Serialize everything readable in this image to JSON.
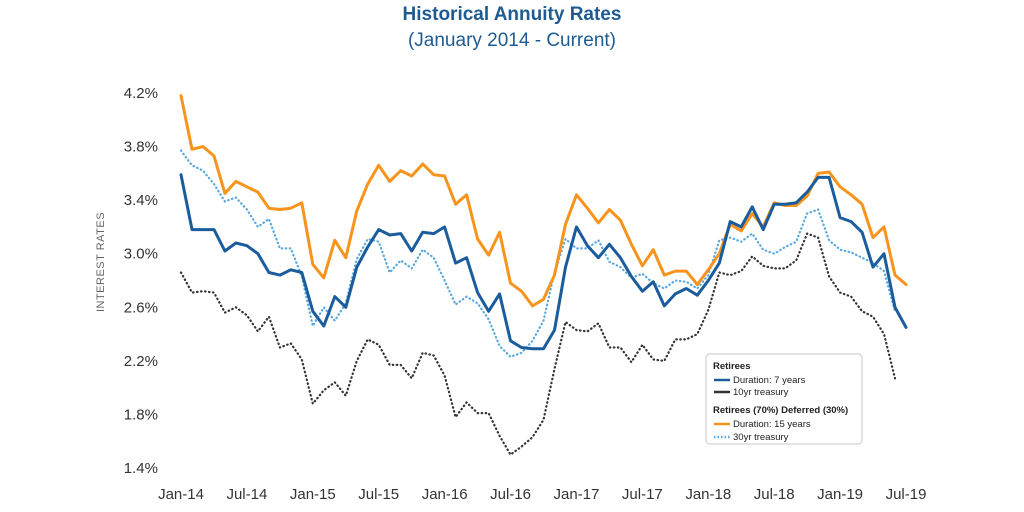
{
  "colors": {
    "title": "#1f5b93",
    "dur7": "#1a5c9c",
    "t10": "#4a90d0",
    "dur15": "#f7941d",
    "t30": "#5aa8e0",
    "other": "#333333"
  },
  "chart_data": {
    "type": "line",
    "title": "Historical Annuity Rates",
    "subtitle": "(January 2014 - Current)",
    "xlabel": "",
    "ylabel": "INTEREST RATES",
    "ylim": [
      1.4,
      4.2
    ],
    "yticks": [
      {
        "v": 4.2,
        "label": "4.2%"
      },
      {
        "v": 3.8,
        "label": "3.8%"
      },
      {
        "v": 3.4,
        "label": "3.4%"
      },
      {
        "v": 3.0,
        "label": "3.0%"
      },
      {
        "v": 2.6,
        "label": "2.6%"
      },
      {
        "v": 2.2,
        "label": "2.2%"
      },
      {
        "v": 1.8,
        "label": "1.8%"
      },
      {
        "v": 1.4,
        "label": "1.4%"
      }
    ],
    "xlim": [
      0,
      66
    ],
    "xticks": [
      {
        "v": 0,
        "label": "Jan-14"
      },
      {
        "v": 6,
        "label": "Jul-14"
      },
      {
        "v": 12,
        "label": "Jan-15"
      },
      {
        "v": 18,
        "label": "Jul-15"
      },
      {
        "v": 24,
        "label": "Jan-16"
      },
      {
        "v": 30,
        "label": "Jul-16"
      },
      {
        "v": 36,
        "label": "Jan-17"
      },
      {
        "v": 42,
        "label": "Jul-17"
      },
      {
        "v": 48,
        "label": "Jan-18"
      },
      {
        "v": 54,
        "label": "Jul-18"
      },
      {
        "v": 60,
        "label": "Jan-19"
      },
      {
        "v": 66,
        "label": "Jul-19"
      }
    ],
    "series": [
      {
        "name": "Duration: 15 years",
        "group": "Retirees (70%) Deferred (30%)",
        "color": "#f7941d",
        "style": "solid",
        "values": [
          4.18,
          3.78,
          3.8,
          3.73,
          3.45,
          3.54,
          3.5,
          3.46,
          3.34,
          3.33,
          3.34,
          3.38,
          2.92,
          2.82,
          3.1,
          2.97,
          3.32,
          3.52,
          3.66,
          3.54,
          3.62,
          3.58,
          3.67,
          3.59,
          3.58,
          3.37,
          3.44,
          3.11,
          2.99,
          3.16,
          2.78,
          2.72,
          2.61,
          2.66,
          2.84,
          3.22,
          3.44,
          3.34,
          3.23,
          3.33,
          3.25,
          3.07,
          2.91,
          3.03,
          2.84,
          2.87,
          2.87,
          2.77,
          2.88,
          3.0,
          3.22,
          3.17,
          3.3,
          3.2,
          3.38,
          3.36,
          3.36,
          3.43,
          3.6,
          3.61,
          3.5,
          3.44,
          3.37,
          3.12,
          3.2,
          2.84,
          2.77
        ]
      },
      {
        "name": "Duration: 7 years",
        "group": "Retirees",
        "color": "#1a5c9c",
        "style": "solid",
        "values": [
          3.59,
          3.18,
          3.18,
          3.18,
          3.02,
          3.08,
          3.06,
          3.0,
          2.86,
          2.84,
          2.88,
          2.86,
          2.57,
          2.46,
          2.68,
          2.6,
          2.9,
          3.05,
          3.18,
          3.14,
          3.15,
          3.02,
          3.16,
          3.15,
          3.2,
          2.93,
          2.97,
          2.71,
          2.57,
          2.7,
          2.35,
          2.3,
          2.29,
          2.29,
          2.43,
          2.9,
          3.2,
          3.06,
          2.97,
          3.07,
          2.97,
          2.83,
          2.72,
          2.79,
          2.61,
          2.7,
          2.74,
          2.69,
          2.8,
          2.93,
          3.24,
          3.2,
          3.35,
          3.18,
          3.37,
          3.37,
          3.38,
          3.46,
          3.57,
          3.57,
          3.27,
          3.24,
          3.16,
          2.9,
          3.0,
          2.6,
          2.45
        ]
      },
      {
        "name": "10yr treasury",
        "group": "Retirees",
        "color": "#333333",
        "style": "dotted",
        "values": [
          2.86,
          2.71,
          2.72,
          2.71,
          2.56,
          2.6,
          2.54,
          2.42,
          2.53,
          2.3,
          2.33,
          2.21,
          1.88,
          1.98,
          2.04,
          1.94,
          2.2,
          2.36,
          2.32,
          2.17,
          2.17,
          2.07,
          2.26,
          2.24,
          2.09,
          1.78,
          1.89,
          1.81,
          1.81,
          1.64,
          1.5,
          1.56,
          1.63,
          1.76,
          2.14,
          2.49,
          2.43,
          2.42,
          2.48,
          2.3,
          2.3,
          2.19,
          2.32,
          2.21,
          2.2,
          2.36,
          2.36,
          2.4,
          2.58,
          2.86,
          2.84,
          2.87,
          2.98,
          2.91,
          2.89,
          2.89,
          2.95,
          3.15,
          3.12,
          2.83,
          2.71,
          2.68,
          2.57,
          2.53,
          2.4,
          2.07
        ]
      },
      {
        "name": "30yr treasury",
        "group": "Retirees (70%) Deferred (30%)",
        "color": "#5aa8e0",
        "style": "dotted",
        "values": [
          3.77,
          3.66,
          3.62,
          3.52,
          3.39,
          3.42,
          3.33,
          3.2,
          3.26,
          3.04,
          3.04,
          2.83,
          2.46,
          2.6,
          2.5,
          2.63,
          2.96,
          3.11,
          3.09,
          2.86,
          2.95,
          2.89,
          3.03,
          2.97,
          2.8,
          2.62,
          2.68,
          2.63,
          2.51,
          2.31,
          2.23,
          2.26,
          2.35,
          2.5,
          2.86,
          3.11,
          3.04,
          3.04,
          3.1,
          2.94,
          2.9,
          2.82,
          2.85,
          2.78,
          2.74,
          2.8,
          2.79,
          2.74,
          2.84,
          3.1,
          3.12,
          3.09,
          3.15,
          3.03,
          3.0,
          3.05,
          3.09,
          3.3,
          3.33,
          3.1,
          3.03,
          3.01,
          2.97,
          2.93,
          2.87,
          2.57
        ]
      }
    ],
    "legend": {
      "placement": "lower-right",
      "groups": [
        {
          "title": "Retirees",
          "items": [
            {
              "label": "Duration: 7 years",
              "series": 1
            },
            {
              "label": "10yr treasury",
              "series": 2
            }
          ]
        },
        {
          "title": "Retirees (70%) Deferred (30%)",
          "items": [
            {
              "label": "Duration: 15 years",
              "series": 0
            },
            {
              "label": "30yr treasury",
              "series": 3
            }
          ]
        }
      ]
    }
  }
}
